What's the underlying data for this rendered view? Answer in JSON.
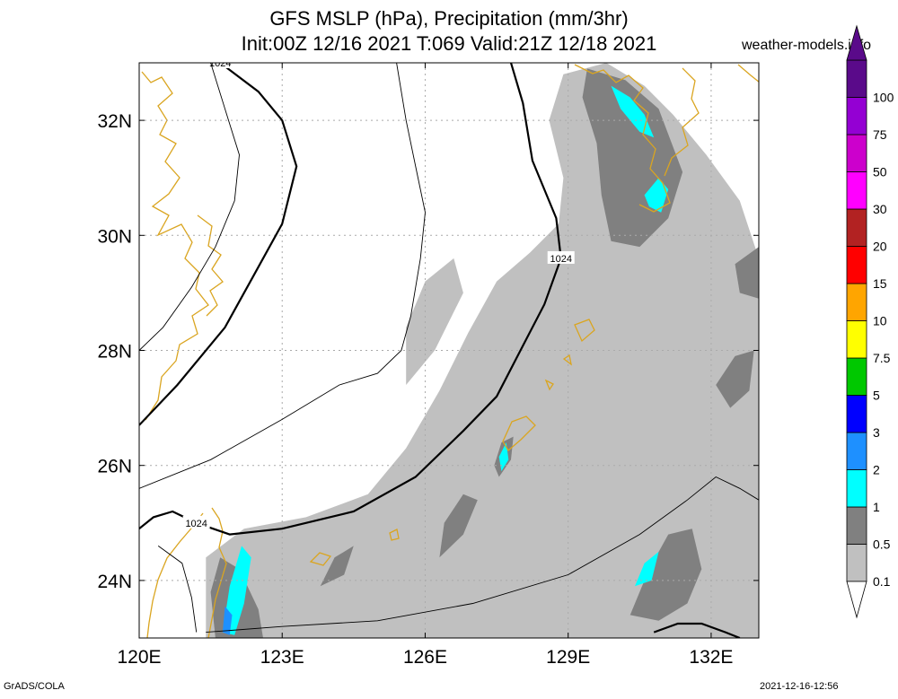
{
  "header": {
    "title_line1": "GFS MSLP (hPa), Precipitation (mm/3hr)",
    "title_line2": "Init:00Z 12/16 2021 T:069 Valid:21Z 12/18 2021",
    "site": "weather-models.info"
  },
  "footer": {
    "left": "GrADS/COLA",
    "right": "2021-12-16-12:56"
  },
  "chart_data": {
    "type": "heatmap",
    "title": "GFS MSLP (hPa), Precipitation (mm/3hr)",
    "subtitle": "Init:00Z 12/16 2021 T:069 Valid:21Z 12/18 2021",
    "x_range": [
      120,
      133
    ],
    "y_range": [
      23,
      33
    ],
    "x_ticks": [
      {
        "value": 120,
        "label": "120E"
      },
      {
        "value": 123,
        "label": "123E"
      },
      {
        "value": 126,
        "label": "126E"
      },
      {
        "value": 129,
        "label": "129E"
      },
      {
        "value": 132,
        "label": "132E"
      }
    ],
    "y_ticks": [
      {
        "value": 24,
        "label": "24N"
      },
      {
        "value": 26,
        "label": "26N"
      },
      {
        "value": 28,
        "label": "28N"
      },
      {
        "value": 30,
        "label": "30N"
      },
      {
        "value": 32,
        "label": "32N"
      }
    ],
    "grid": true,
    "legend": {
      "placement": "right",
      "bins": [
        {
          "label": "0.1",
          "color": "#c0c0c0"
        },
        {
          "label": "0.5",
          "color": "#808080"
        },
        {
          "label": "1",
          "color": "#00ffff"
        },
        {
          "label": "2",
          "color": "#1e90ff"
        },
        {
          "label": "3",
          "color": "#0000ff"
        },
        {
          "label": "5",
          "color": "#00c800"
        },
        {
          "label": "7.5",
          "color": "#ffff00"
        },
        {
          "label": "10",
          "color": "#ffa500"
        },
        {
          "label": "15",
          "color": "#ff0000"
        },
        {
          "label": "20",
          "color": "#b22222"
        },
        {
          "label": "30",
          "color": "#ff00ff"
        },
        {
          "label": "50",
          "color": "#cc00cc"
        },
        {
          "label": "75",
          "color": "#9400d3"
        },
        {
          "label": "100",
          "color": "#5a0a8a"
        }
      ]
    },
    "isobars": [
      {
        "value": 1024,
        "label": "1024",
        "bold": true,
        "points": [
          [
            120,
            24.9
          ],
          [
            120.3,
            25.1
          ],
          [
            120.7,
            25.2
          ],
          [
            121.2,
            25.0
          ],
          [
            121.9,
            24.8
          ],
          [
            123,
            24.9
          ],
          [
            124.5,
            25.2
          ],
          [
            125.8,
            25.8
          ],
          [
            126.8,
            26.6
          ],
          [
            127.5,
            27.2
          ],
          [
            128.0,
            28.0
          ],
          [
            128.5,
            28.8
          ],
          [
            128.85,
            29.6
          ],
          [
            128.75,
            30.3
          ],
          [
            128.25,
            31.3
          ],
          [
            128.05,
            32.3
          ],
          [
            127.8,
            33.0
          ]
        ]
      },
      {
        "value": 1024,
        "label": "1024",
        "bold": true,
        "points": [
          [
            120,
            26.7
          ],
          [
            120.8,
            27.4
          ],
          [
            121.8,
            28.4
          ],
          [
            122.4,
            29.3
          ],
          [
            123.0,
            30.2
          ],
          [
            123.3,
            31.2
          ],
          [
            123.0,
            32.0
          ],
          [
            122.5,
            32.5
          ],
          [
            121.7,
            33.0
          ]
        ]
      },
      {
        "value": 1024,
        "label": "",
        "bold": true,
        "points": [
          [
            130.8,
            23.1
          ],
          [
            131.3,
            23.25
          ],
          [
            131.8,
            23.25
          ],
          [
            132.3,
            23.1
          ],
          [
            132.6,
            23.0
          ]
        ]
      },
      {
        "value": null,
        "label": "",
        "bold": false,
        "points": [
          [
            120,
            25.6
          ],
          [
            121.5,
            26.1
          ],
          [
            123.0,
            26.8
          ],
          [
            124.2,
            27.4
          ],
          [
            125.0,
            27.6
          ],
          [
            125.5,
            28.0
          ],
          [
            125.7,
            28.6
          ],
          [
            125.9,
            29.6
          ],
          [
            126.0,
            30.4
          ],
          [
            125.8,
            31.2
          ],
          [
            125.6,
            32.0
          ],
          [
            125.4,
            33.0
          ]
        ]
      },
      {
        "value": null,
        "label": "",
        "bold": false,
        "points": [
          [
            120,
            28.0
          ],
          [
            120.5,
            28.4
          ],
          [
            121.1,
            29.1
          ],
          [
            121.6,
            29.8
          ],
          [
            122.0,
            30.6
          ],
          [
            122.1,
            31.4
          ],
          [
            121.8,
            32.2
          ],
          [
            121.5,
            33.0
          ]
        ]
      },
      {
        "value": null,
        "label": "",
        "bold": false,
        "points": [
          [
            121.4,
            23.1
          ],
          [
            123.0,
            23.2
          ],
          [
            125.0,
            23.3
          ],
          [
            127.0,
            23.6
          ],
          [
            129.0,
            24.1
          ],
          [
            130.5,
            24.8
          ],
          [
            131.5,
            25.4
          ],
          [
            132.1,
            25.8
          ],
          [
            132.6,
            25.6
          ],
          [
            133.0,
            25.4
          ]
        ]
      },
      {
        "value": null,
        "label": "",
        "bold": false,
        "points": [
          [
            120.4,
            24.6
          ],
          [
            120.9,
            24.3
          ],
          [
            121.1,
            23.7
          ],
          [
            121.2,
            23.1
          ]
        ]
      }
    ],
    "coastline_color": "#daa520",
    "precip_areas": [
      {
        "bin": "0.1",
        "points": [
          [
            121.4,
            24.4
          ],
          [
            122.2,
            24.9
          ],
          [
            123.5,
            25.1
          ],
          [
            124.8,
            25.5
          ],
          [
            125.6,
            26.3
          ],
          [
            126.3,
            27.3
          ],
          [
            126.9,
            28.3
          ],
          [
            127.5,
            29.2
          ],
          [
            128.2,
            29.7
          ],
          [
            128.8,
            30.2
          ],
          [
            128.9,
            31.0
          ],
          [
            128.6,
            32.0
          ],
          [
            128.9,
            32.8
          ],
          [
            129.8,
            33.0
          ],
          [
            130.6,
            32.6
          ],
          [
            131.2,
            32.1
          ],
          [
            131.9,
            31.4
          ],
          [
            132.6,
            30.6
          ],
          [
            133.0,
            29.6
          ],
          [
            133.0,
            23.0
          ],
          [
            121.4,
            23.0
          ]
        ]
      },
      {
        "bin": "0.1",
        "points": [
          [
            125.6,
            27.4
          ],
          [
            126.2,
            28.0
          ],
          [
            126.8,
            29.0
          ],
          [
            126.6,
            29.6
          ],
          [
            126.0,
            29.2
          ],
          [
            125.6,
            28.4
          ]
        ]
      },
      {
        "bin": "0.5",
        "points": [
          [
            121.7,
            24.4
          ],
          [
            122.1,
            24.2
          ],
          [
            122.5,
            23.5
          ],
          [
            122.6,
            23.0
          ],
          [
            121.6,
            23.0
          ],
          [
            121.5,
            23.8
          ]
        ]
      },
      {
        "bin": "0.5",
        "points": [
          [
            129.4,
            32.9
          ],
          [
            130.2,
            32.7
          ],
          [
            130.9,
            32.2
          ],
          [
            131.4,
            31.1
          ],
          [
            131.1,
            30.3
          ],
          [
            130.5,
            29.8
          ],
          [
            129.9,
            29.9
          ],
          [
            129.7,
            30.7
          ],
          [
            129.6,
            31.6
          ],
          [
            129.3,
            32.4
          ]
        ]
      },
      {
        "bin": "0.5",
        "points": [
          [
            130.3,
            23.4
          ],
          [
            130.7,
            24.2
          ],
          [
            131.1,
            24.8
          ],
          [
            131.6,
            24.9
          ],
          [
            131.8,
            24.2
          ],
          [
            131.5,
            23.6
          ],
          [
            130.9,
            23.3
          ]
        ]
      },
      {
        "bin": "0.5",
        "points": [
          [
            123.8,
            23.9
          ],
          [
            124.3,
            24.1
          ],
          [
            124.5,
            24.6
          ],
          [
            124.1,
            24.4
          ]
        ]
      },
      {
        "bin": "0.5",
        "points": [
          [
            126.3,
            24.4
          ],
          [
            126.8,
            24.8
          ],
          [
            127.1,
            25.4
          ],
          [
            126.8,
            25.5
          ],
          [
            126.4,
            25.0
          ]
        ]
      },
      {
        "bin": "0.5",
        "points": [
          [
            127.55,
            25.8
          ],
          [
            127.8,
            26.1
          ],
          [
            127.85,
            26.5
          ],
          [
            127.6,
            26.4
          ],
          [
            127.45,
            26.0
          ]
        ]
      },
      {
        "bin": "0.5",
        "points": [
          [
            132.1,
            27.4
          ],
          [
            132.5,
            27.9
          ],
          [
            132.9,
            28.0
          ],
          [
            132.8,
            27.3
          ],
          [
            132.4,
            27.0
          ]
        ]
      },
      {
        "bin": "0.5",
        "points": [
          [
            132.5,
            29.5
          ],
          [
            133.0,
            29.8
          ],
          [
            133.0,
            28.9
          ],
          [
            132.6,
            29.0
          ]
        ]
      },
      {
        "bin": "1",
        "points": [
          [
            121.75,
            23.1
          ],
          [
            121.9,
            23.9
          ],
          [
            122.15,
            24.6
          ],
          [
            122.35,
            24.4
          ],
          [
            122.2,
            23.6
          ],
          [
            122.0,
            23.05
          ]
        ]
      },
      {
        "bin": "1",
        "points": [
          [
            129.9,
            32.6
          ],
          [
            130.3,
            32.4
          ],
          [
            130.6,
            32.1
          ],
          [
            130.8,
            31.7
          ],
          [
            130.5,
            31.8
          ],
          [
            130.1,
            32.2
          ]
        ]
      },
      {
        "bin": "1",
        "points": [
          [
            130.6,
            30.7
          ],
          [
            130.9,
            31.0
          ],
          [
            131.1,
            30.8
          ],
          [
            130.95,
            30.4
          ],
          [
            130.7,
            30.5
          ]
        ]
      },
      {
        "bin": "1",
        "points": [
          [
            130.4,
            23.9
          ],
          [
            130.6,
            24.3
          ],
          [
            130.9,
            24.5
          ],
          [
            130.75,
            24.0
          ]
        ]
      },
      {
        "bin": "1",
        "points": [
          [
            127.6,
            25.9
          ],
          [
            127.75,
            26.1
          ],
          [
            127.7,
            26.4
          ],
          [
            127.55,
            26.15
          ]
        ]
      },
      {
        "bin": "2",
        "points": [
          [
            121.75,
            23.1
          ],
          [
            121.8,
            23.55
          ],
          [
            121.95,
            23.4
          ],
          [
            121.9,
            23.05
          ]
        ]
      }
    ]
  }
}
